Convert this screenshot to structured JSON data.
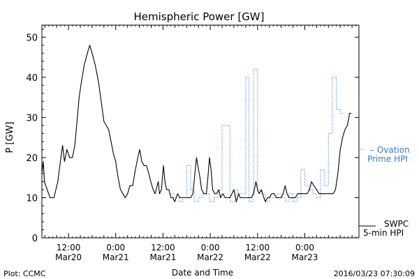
{
  "chart_data": {
    "type": "line",
    "title": "Hemispheric Power [GW]",
    "ylabel": "P [GW]",
    "xlabel": "Date and Time",
    "ylim": [
      0,
      53
    ],
    "yticks": [
      0,
      10,
      20,
      30,
      40,
      50
    ],
    "x_range_hours": [
      -0.75,
      79.75
    ],
    "x_unit": "hours since 2016-03-20 06:00",
    "x_ticks": [
      {
        "h": 6,
        "time": "12:00",
        "date": "Mar20"
      },
      {
        "h": 18,
        "time": "0:00",
        "date": "Mar21"
      },
      {
        "h": 30,
        "time": "12:00",
        "date": "Mar21"
      },
      {
        "h": 42,
        "time": "0:00",
        "date": "Mar22"
      },
      {
        "h": 54,
        "time": "12:00",
        "date": "Mar22"
      },
      {
        "h": 66,
        "time": "0:00",
        "date": "Mar23"
      }
    ],
    "series": [
      {
        "name": "SWPC 5-min HPI",
        "color": "#000000",
        "style": "solid",
        "points": [
          [
            -0.75,
            16
          ],
          [
            -0.4,
            19
          ],
          [
            -0.1,
            14
          ],
          [
            0.6,
            12
          ],
          [
            1.3,
            10
          ],
          [
            2.3,
            10
          ],
          [
            3.3,
            14
          ],
          [
            3.8,
            18
          ],
          [
            4.5,
            23
          ],
          [
            5,
            19
          ],
          [
            5.6,
            22
          ],
          [
            6.3,
            20
          ],
          [
            7,
            20
          ],
          [
            7.6,
            23
          ],
          [
            8,
            27
          ],
          [
            8.7,
            35
          ],
          [
            9.3,
            39
          ],
          [
            10,
            43
          ],
          [
            10.8,
            46
          ],
          [
            11.4,
            48
          ],
          [
            12,
            46
          ],
          [
            12.8,
            43
          ],
          [
            13.6,
            39
          ],
          [
            14.3,
            34
          ],
          [
            15,
            29
          ],
          [
            15.6,
            28
          ],
          [
            16.2,
            27
          ],
          [
            16.8,
            24
          ],
          [
            17.4,
            21
          ],
          [
            18,
            19
          ],
          [
            18.6,
            15
          ],
          [
            19.2,
            12
          ],
          [
            19.8,
            11
          ],
          [
            20.4,
            10
          ],
          [
            21,
            11
          ],
          [
            21.6,
            13
          ],
          [
            22.3,
            13
          ],
          [
            23,
            17
          ],
          [
            23.6,
            20
          ],
          [
            24.1,
            22
          ],
          [
            24.6,
            19
          ],
          [
            25.2,
            18
          ],
          [
            25.8,
            18
          ],
          [
            26.4,
            16
          ],
          [
            26.9,
            14
          ],
          [
            27.5,
            12
          ],
          [
            28,
            11
          ],
          [
            28.5,
            13
          ],
          [
            28.8,
            14
          ],
          [
            29.1,
            11
          ],
          [
            29.6,
            12
          ],
          [
            30.1,
            18
          ],
          [
            30.5,
            14
          ],
          [
            30.9,
            12
          ],
          [
            31.5,
            12
          ],
          [
            32,
            10
          ],
          [
            32.5,
            10
          ],
          [
            33,
            9
          ],
          [
            33.7,
            11
          ],
          [
            34.3,
            10
          ],
          [
            35,
            10
          ],
          [
            36,
            10
          ],
          [
            37,
            10
          ],
          [
            37.6,
            11
          ],
          [
            38,
            15
          ],
          [
            38.5,
            20
          ],
          [
            39,
            17
          ],
          [
            39.4,
            15
          ],
          [
            39.8,
            12
          ],
          [
            40.4,
            11
          ],
          [
            41,
            11
          ],
          [
            41.4,
            15
          ],
          [
            41.8,
            20
          ],
          [
            42.2,
            17
          ],
          [
            42.6,
            12
          ],
          [
            43.1,
            11
          ],
          [
            43.6,
            11
          ],
          [
            44.2,
            12
          ],
          [
            44.6,
            10
          ],
          [
            45.2,
            11
          ],
          [
            45.8,
            10
          ],
          [
            46.4,
            10
          ],
          [
            47,
            10
          ],
          [
            47.5,
            11
          ],
          [
            48,
            12
          ],
          [
            48.6,
            9
          ],
          [
            49.2,
            11
          ],
          [
            49.6,
            10
          ],
          [
            50.2,
            10
          ],
          [
            50.8,
            10
          ],
          [
            51.6,
            10
          ],
          [
            52.4,
            10
          ],
          [
            53,
            11
          ],
          [
            53.6,
            14
          ],
          [
            54,
            12
          ],
          [
            54.4,
            11
          ],
          [
            55,
            12
          ],
          [
            55.6,
            10
          ],
          [
            56,
            9
          ],
          [
            56.5,
            10
          ],
          [
            57,
            10
          ],
          [
            57.6,
            11
          ],
          [
            58.2,
            11
          ],
          [
            58.8,
            10
          ],
          [
            59.4,
            10
          ],
          [
            60,
            10
          ],
          [
            60.5,
            11
          ],
          [
            61,
            13
          ],
          [
            61.5,
            11
          ],
          [
            62,
            10
          ],
          [
            62.5,
            10
          ],
          [
            63,
            10
          ],
          [
            63.6,
            10
          ],
          [
            64.2,
            11
          ],
          [
            64.8,
            11
          ],
          [
            65.4,
            11
          ],
          [
            66,
            11
          ],
          [
            66.6,
            11
          ],
          [
            67.2,
            12
          ],
          [
            67.7,
            14
          ],
          [
            68.3,
            13
          ],
          [
            69,
            12
          ],
          [
            69.6,
            11
          ],
          [
            70.2,
            11
          ],
          [
            70.8,
            11
          ],
          [
            71.4,
            11
          ],
          [
            72,
            11
          ],
          [
            72.6,
            11
          ],
          [
            73.2,
            11
          ],
          [
            73.8,
            12
          ],
          [
            74.4,
            16
          ],
          [
            75,
            22
          ],
          [
            75.6,
            25
          ],
          [
            76.2,
            27
          ],
          [
            76.8,
            28
          ],
          [
            77.4,
            31
          ],
          [
            77.8,
            31
          ]
        ]
      },
      {
        "name": "Ovation Prime HPI",
        "color": "#3a78c8",
        "style": "dotted",
        "points": [
          [
            32,
            11
          ],
          [
            32.6,
            11
          ],
          [
            32.6,
            10
          ],
          [
            34,
            10
          ],
          [
            34,
            9
          ],
          [
            35,
            9
          ],
          [
            35,
            10
          ],
          [
            36,
            10
          ],
          [
            36,
            18
          ],
          [
            37,
            18
          ],
          [
            37,
            12
          ],
          [
            38,
            12
          ],
          [
            38,
            9
          ],
          [
            39,
            9
          ],
          [
            39,
            10
          ],
          [
            40,
            10
          ],
          [
            40,
            11
          ],
          [
            41.8,
            11
          ],
          [
            41.8,
            9
          ],
          [
            43,
            9
          ],
          [
            43,
            10
          ],
          [
            44,
            10
          ],
          [
            44,
            12
          ],
          [
            45,
            12
          ],
          [
            45,
            28
          ],
          [
            47,
            28
          ],
          [
            47,
            9
          ],
          [
            48.5,
            9
          ],
          [
            48.5,
            12
          ],
          [
            49,
            12
          ],
          [
            49,
            11
          ],
          [
            51,
            11
          ],
          [
            51,
            40
          ],
          [
            51.8,
            40
          ],
          [
            51.8,
            9
          ],
          [
            52.8,
            9
          ],
          [
            52.8,
            12
          ],
          [
            53,
            12
          ],
          [
            53,
            42
          ],
          [
            54,
            42
          ],
          [
            54,
            12
          ],
          [
            55,
            12
          ],
          [
            55,
            11
          ],
          [
            56,
            11
          ],
          [
            56,
            9
          ],
          [
            57,
            9
          ],
          [
            57,
            10
          ],
          [
            59,
            10
          ],
          [
            59,
            11
          ],
          [
            60,
            11
          ],
          [
            60,
            10
          ],
          [
            61,
            10
          ],
          [
            61,
            9
          ],
          [
            62,
            9
          ],
          [
            62,
            11
          ],
          [
            63,
            11
          ],
          [
            63,
            9
          ],
          [
            64,
            9
          ],
          [
            64,
            10
          ],
          [
            65,
            10
          ],
          [
            65,
            17
          ],
          [
            66,
            17
          ],
          [
            66,
            13
          ],
          [
            67,
            13
          ],
          [
            67,
            12
          ],
          [
            68,
            12
          ],
          [
            68,
            11
          ],
          [
            69,
            11
          ],
          [
            69,
            10
          ],
          [
            70,
            10
          ],
          [
            70,
            17
          ],
          [
            71,
            17
          ],
          [
            71,
            13
          ],
          [
            72,
            13
          ],
          [
            72,
            26
          ],
          [
            73,
            26
          ],
          [
            73,
            40
          ],
          [
            74,
            40
          ],
          [
            74,
            32
          ],
          [
            75,
            32
          ],
          [
            75,
            31
          ],
          [
            75.8,
            31
          ]
        ]
      }
    ],
    "legend": [
      {
        "label_1": "SWPC",
        "label_2": "5-min HPI",
        "color": "#000000",
        "placement": "bottom-right"
      },
      {
        "label_1": "– Ovation",
        "label_2": "Prime HPI",
        "color": "#3a78c8",
        "placement": "right"
      }
    ]
  },
  "footer": {
    "left": "Plot: CCMC",
    "right": "2016/03/23 07:30:09"
  }
}
